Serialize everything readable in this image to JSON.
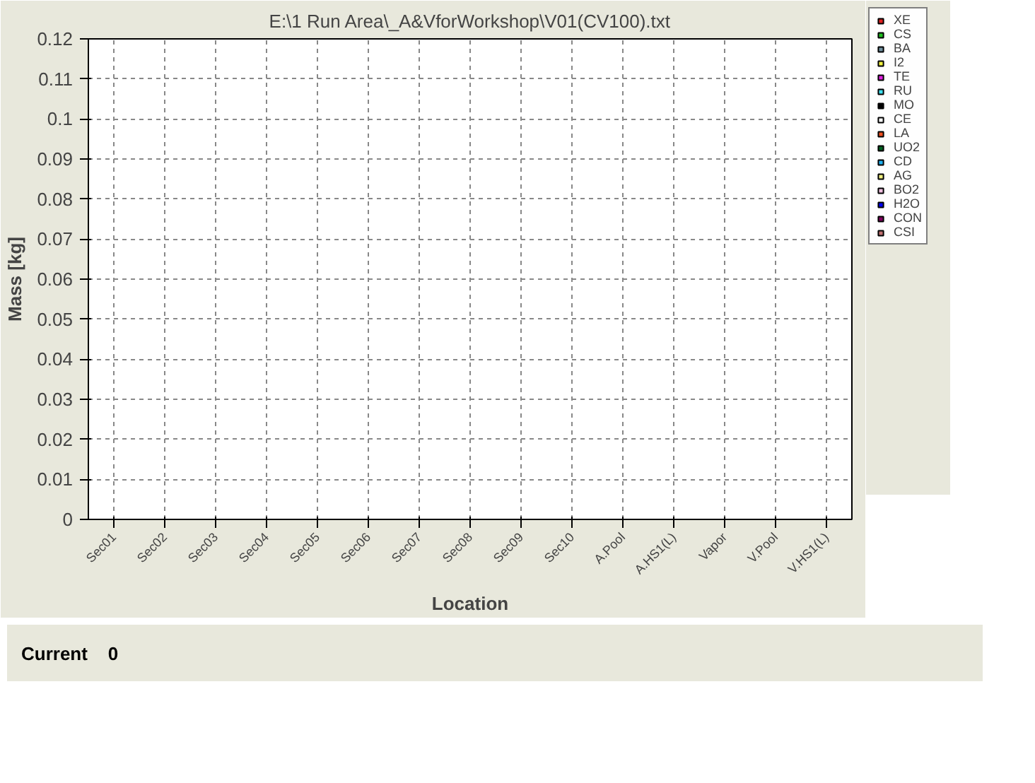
{
  "chart_data": {
    "type": "bar",
    "title": "E:\\1 Run Area\\_A&VforWorkshop\\V01(CV100).txt",
    "xlabel": "Location",
    "ylabel": "Mass [kg]",
    "categories": [
      "Sec01",
      "Sec02",
      "Sec03",
      "Sec04",
      "Sec05",
      "Sec06",
      "Sec07",
      "Sec08",
      "Sec09",
      "Sec10",
      "A.Pool",
      "A.HS1(L)",
      "Vapor",
      "V.Pool",
      "V.HS1(L)"
    ],
    "series": [
      {
        "name": "XE",
        "color": "#e02020",
        "values": [
          0,
          0,
          0,
          0,
          0,
          0,
          0,
          0,
          0,
          0,
          0,
          0,
          0,
          0,
          0
        ]
      },
      {
        "name": "CS",
        "color": "#20c020",
        "values": [
          0,
          0,
          0,
          0,
          0,
          0,
          0,
          0,
          0,
          0,
          0,
          0,
          0,
          0,
          0
        ]
      },
      {
        "name": "BA",
        "color": "#7090a0",
        "values": [
          0,
          0,
          0,
          0,
          0,
          0,
          0,
          0,
          0,
          0,
          0,
          0,
          0,
          0,
          0
        ]
      },
      {
        "name": "I2",
        "color": "#f0f040",
        "values": [
          0,
          0,
          0,
          0,
          0,
          0,
          0,
          0,
          0,
          0,
          0,
          0,
          0,
          0,
          0
        ]
      },
      {
        "name": "TE",
        "color": "#e020e0",
        "values": [
          0,
          0,
          0,
          0,
          0,
          0,
          0,
          0,
          0,
          0,
          0,
          0,
          0,
          0,
          0
        ]
      },
      {
        "name": "RU",
        "color": "#40e0f0",
        "values": [
          0,
          0,
          0,
          0,
          0,
          0,
          0,
          0,
          0,
          0,
          0,
          0,
          0,
          0,
          0
        ]
      },
      {
        "name": "MO",
        "color": "#000000",
        "values": [
          0,
          0,
          0,
          0,
          0,
          0,
          0,
          0,
          0,
          0,
          0,
          0,
          0,
          0,
          0
        ]
      },
      {
        "name": "CE",
        "color": "#ffffff",
        "values": [
          0,
          0,
          0,
          0,
          0,
          0,
          0,
          0,
          0,
          0,
          0,
          0,
          0,
          0,
          0
        ]
      },
      {
        "name": "LA",
        "color": "#f05020",
        "values": [
          0,
          0,
          0,
          0,
          0,
          0,
          0,
          0,
          0,
          0,
          0,
          0,
          0,
          0,
          0
        ]
      },
      {
        "name": "UO2",
        "color": "#006020",
        "values": [
          0,
          0,
          0,
          0,
          0,
          0,
          0,
          0,
          0,
          0,
          0,
          0,
          0,
          0,
          0
        ]
      },
      {
        "name": "CD",
        "color": "#20b0f0",
        "values": [
          0,
          0,
          0,
          0,
          0,
          0,
          0,
          0,
          0,
          0,
          0,
          0,
          0,
          0,
          0
        ]
      },
      {
        "name": "AG",
        "color": "#f0f080",
        "values": [
          0,
          0,
          0,
          0,
          0,
          0,
          0,
          0,
          0,
          0,
          0,
          0,
          0,
          0,
          0
        ]
      },
      {
        "name": "BO2",
        "color": "#f0c0e0",
        "values": [
          0,
          0,
          0,
          0,
          0,
          0,
          0,
          0,
          0,
          0,
          0,
          0,
          0,
          0,
          0
        ]
      },
      {
        "name": "H2O",
        "color": "#0000f0",
        "values": [
          0,
          0,
          0,
          0,
          0,
          0,
          0,
          0,
          0,
          0,
          0,
          0,
          0,
          0,
          0
        ]
      },
      {
        "name": "CON",
        "color": "#800060",
        "values": [
          0,
          0,
          0,
          0,
          0,
          0,
          0,
          0,
          0,
          0,
          0,
          0,
          0,
          0,
          0
        ]
      },
      {
        "name": "CSI",
        "color": "#c07070",
        "values": [
          0,
          0,
          0,
          0,
          0,
          0,
          0,
          0,
          0,
          0,
          0,
          0,
          0,
          0,
          0
        ]
      }
    ],
    "ylim": [
      0,
      0.12
    ],
    "yticks": [
      0,
      0.01,
      0.02,
      0.03,
      0.04,
      0.05,
      0.06,
      0.07,
      0.08,
      0.09,
      0.1,
      0.11,
      0.12
    ],
    "grid": true,
    "legend": "right",
    "annotations": [
      "Current    0"
    ]
  }
}
